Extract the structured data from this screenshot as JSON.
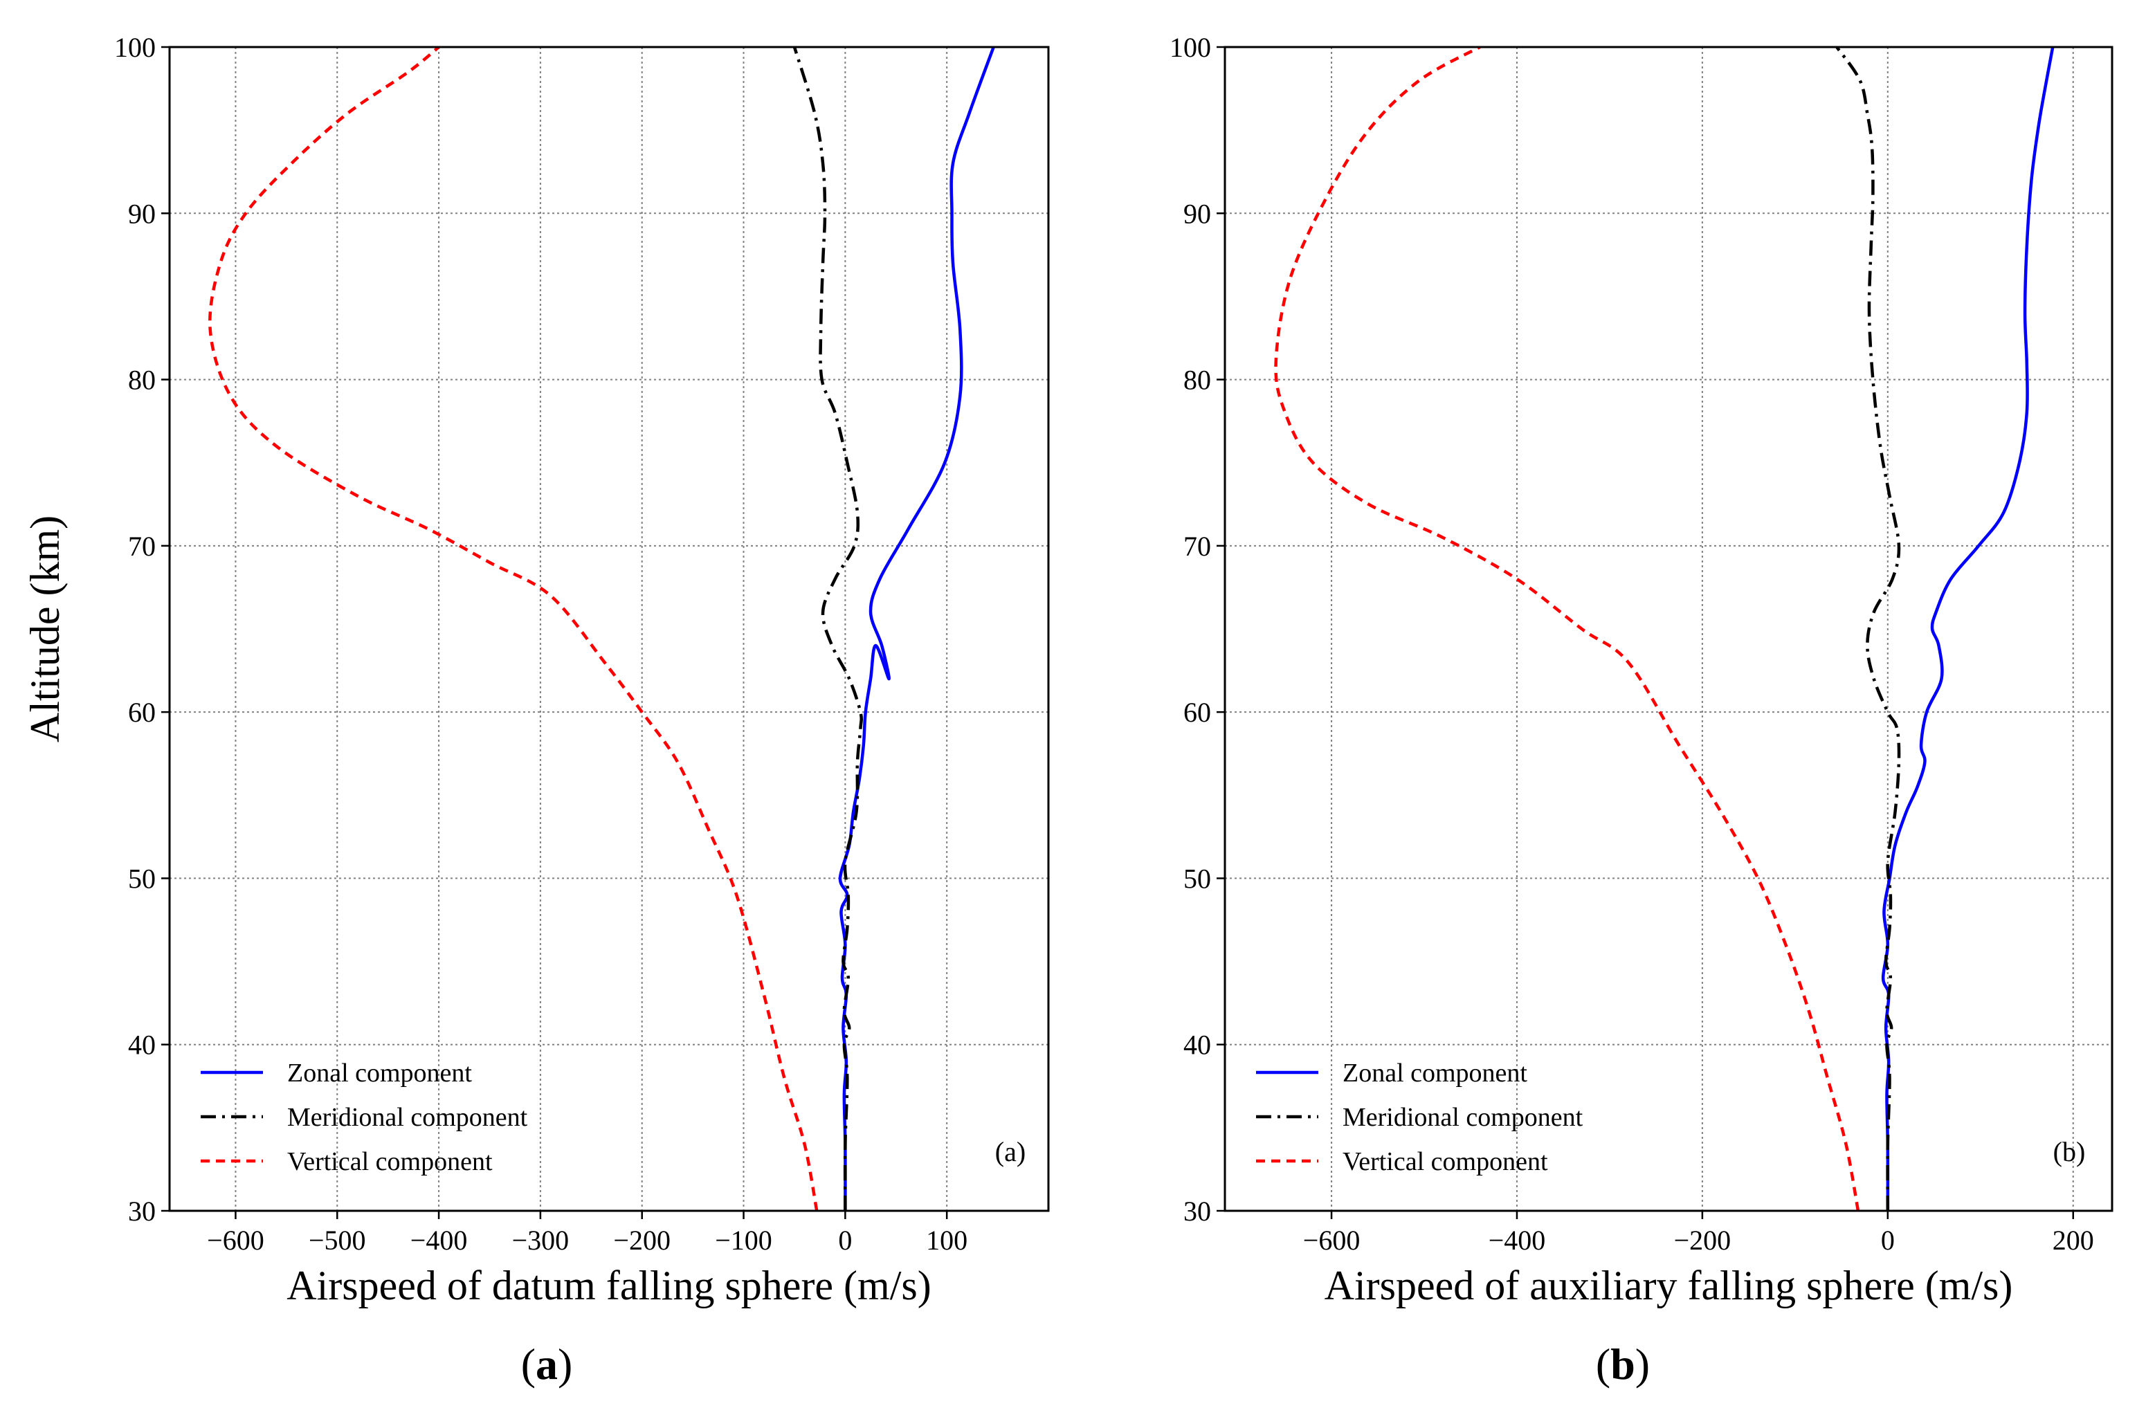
{
  "colors": {
    "zonal": "#0000ff",
    "meridional": "#000000",
    "vertical": "#ff0000",
    "grid": "#808080"
  },
  "captions": [
    {
      "open": "(",
      "letter": "a",
      "close": ")"
    },
    {
      "open": "(",
      "letter": "b",
      "close": ")"
    }
  ],
  "chart_data": [
    {
      "type": "line",
      "panel_label": "(a)",
      "xlabel": "Airspeed of datum falling sphere (m/s)",
      "ylabel": "Altitude (km)",
      "xlim": [
        -665,
        200
      ],
      "ylim": [
        30,
        100
      ],
      "xticks": [
        -600,
        -500,
        -400,
        -300,
        -200,
        -100,
        0,
        100
      ],
      "xtick_labels": [
        "−600",
        "−500",
        "−400",
        "−300",
        "−200",
        "−100",
        "0",
        "100"
      ],
      "yticks": [
        30,
        40,
        50,
        60,
        70,
        80,
        90,
        100
      ],
      "ytick_labels": [
        "30",
        "40",
        "50",
        "60",
        "70",
        "80",
        "90",
        "100"
      ],
      "grid": true,
      "legend_position": "lower-left",
      "series": [
        {
          "name": "Zonal component",
          "style": "solid",
          "x": [
            0,
            0,
            -1,
            1,
            -2,
            1,
            -3,
            0,
            -4,
            2,
            -5,
            4,
            8,
            14,
            18,
            20,
            25,
            30,
            43,
            36,
            25,
            34,
            62,
            98,
            113,
            113,
            106,
            105,
            106,
            122,
            146
          ],
          "y": [
            30,
            34,
            37,
            39,
            41,
            43,
            44,
            46,
            48,
            49,
            50,
            52,
            54,
            56,
            58,
            60,
            62,
            64,
            62,
            64,
            66,
            68,
            71,
            75,
            79,
            83,
            87,
            90,
            93,
            96,
            100
          ]
        },
        {
          "name": "Meridional component",
          "style": "dashdot",
          "x": [
            0,
            0,
            2,
            -1,
            4,
            -1,
            3,
            -2,
            2,
            3,
            0,
            11,
            12,
            15,
            15,
            4,
            -13,
            -22,
            -10,
            9,
            12,
            2,
            -10,
            -23,
            -24,
            -22,
            -20,
            -22,
            -30,
            -50
          ],
          "y": [
            30,
            34,
            38,
            40,
            41,
            42,
            44,
            45,
            47,
            49,
            51,
            54,
            57,
            59,
            60,
            62,
            64,
            66,
            68,
            70,
            72,
            75,
            78,
            80,
            83,
            87,
            90,
            93,
            96,
            100
          ]
        },
        {
          "name": "Vertical component",
          "style": "dashed",
          "x": [
            -28,
            -40,
            -60,
            -80,
            -107,
            -135,
            -165,
            -200,
            -237,
            -290,
            -350,
            -410,
            -480,
            -560,
            -605,
            -625,
            -615,
            -590,
            -545,
            -490,
            -430,
            -400
          ],
          "y": [
            30,
            34,
            38,
            43,
            49,
            53,
            57,
            60,
            63,
            67,
            69,
            71,
            73,
            76,
            79,
            83,
            87,
            90,
            93,
            96,
            98.5,
            100
          ]
        }
      ]
    },
    {
      "type": "line",
      "panel_label": "(b)",
      "xlabel": "Airspeed of auxiliary falling sphere (m/s)",
      "ylabel": "",
      "xlim": [
        -715,
        242
      ],
      "ylim": [
        30,
        100
      ],
      "xticks": [
        -600,
        -400,
        -200,
        0,
        200
      ],
      "xtick_labels": [
        "−600",
        "−400",
        "−200",
        "0",
        "200"
      ],
      "yticks": [
        30,
        40,
        50,
        60,
        70,
        80,
        90,
        100
      ],
      "ytick_labels": [
        "30",
        "40",
        "50",
        "60",
        "70",
        "80",
        "90",
        "100"
      ],
      "grid": true,
      "legend_position": "lower-left",
      "series": [
        {
          "name": "Zonal component",
          "style": "solid",
          "x": [
            0,
            0,
            -1,
            1,
            -2,
            1,
            -5,
            0,
            -4,
            2,
            8,
            20,
            32,
            40,
            36,
            42,
            58,
            55,
            48,
            52,
            68,
            98,
            125,
            142,
            150,
            150,
            148,
            150,
            155,
            162,
            168,
            178
          ],
          "y": [
            30,
            34,
            37,
            39,
            41,
            43,
            44,
            46,
            48,
            50,
            52,
            54,
            55.5,
            57,
            58,
            60,
            62,
            64,
            65,
            66,
            68,
            70,
            72,
            75,
            78,
            81,
            84,
            88,
            92,
            95,
            97,
            100
          ]
        },
        {
          "name": "Meridional component",
          "style": "dashdot",
          "x": [
            0,
            0,
            2,
            -1,
            4,
            -1,
            3,
            -2,
            2,
            3,
            0,
            8,
            12,
            10,
            0,
            -15,
            -22,
            -15,
            5,
            12,
            2,
            -8,
            -16,
            -20,
            -18,
            -16,
            -17,
            -22,
            -30,
            -55
          ],
          "y": [
            30,
            34,
            38,
            40,
            41,
            42,
            44,
            45,
            47,
            49,
            51,
            54,
            57,
            59,
            60,
            62,
            64,
            66,
            68,
            70,
            73,
            76,
            80,
            84,
            88,
            91,
            94,
            96,
            98,
            100
          ]
        },
        {
          "name": "Vertical component",
          "style": "dashed",
          "x": [
            -32,
            -45,
            -65,
            -85,
            -110,
            -140,
            -180,
            -225,
            -280,
            -330,
            -400,
            -480,
            -560,
            -620,
            -650,
            -660,
            -645,
            -605,
            -560,
            -505,
            -440
          ],
          "y": [
            30,
            34,
            38,
            42,
            46,
            50,
            54,
            58,
            63,
            65,
            68,
            70.5,
            72.5,
            75,
            78,
            81,
            86,
            91,
            95,
            98,
            100
          ]
        }
      ]
    }
  ]
}
